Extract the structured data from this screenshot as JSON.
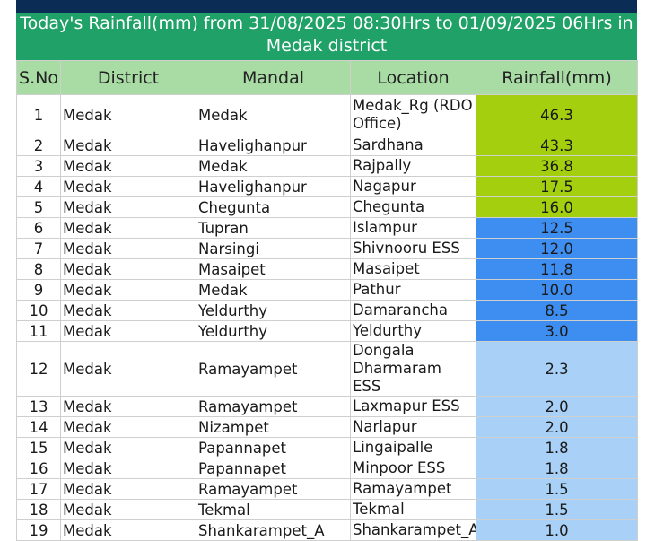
{
  "title_line1": "Today's Rainfall(mm) from 31/08/2025 08:30Hrs to 01/09/2025 06Hrs in",
  "title_line2": "Medak district",
  "headers": [
    "S.No",
    "District",
    "Mandal",
    "Location",
    "Rainfall(mm)"
  ],
  "colors": {
    "green": "#a4cf0f",
    "mid_blue": "#3d8ef0",
    "light_blue": "#a9d1f7",
    "header_green": "#a9dca5",
    "title_green": "#1fa167",
    "top_navy": "#0b2d55"
  },
  "rows": [
    {
      "sno": "1",
      "district": "Medak",
      "mandal": "Medak",
      "location": "Medak_Rg (RDO Office)",
      "rainfall": "46.3",
      "level": "green",
      "tall": true
    },
    {
      "sno": "2",
      "district": "Medak",
      "mandal": "Havelighanpur",
      "location": "Sardhana",
      "rainfall": "43.3",
      "level": "green"
    },
    {
      "sno": "3",
      "district": "Medak",
      "mandal": "Medak",
      "location": "Rajpally",
      "rainfall": "36.8",
      "level": "green"
    },
    {
      "sno": "4",
      "district": "Medak",
      "mandal": "Havelighanpur",
      "location": "Nagapur",
      "rainfall": "17.5",
      "level": "green"
    },
    {
      "sno": "5",
      "district": "Medak",
      "mandal": "Chegunta",
      "location": "Chegunta",
      "rainfall": "16.0",
      "level": "green"
    },
    {
      "sno": "6",
      "district": "Medak",
      "mandal": "Tupran",
      "location": "Islampur",
      "rainfall": "12.5",
      "level": "mid_blue"
    },
    {
      "sno": "7",
      "district": "Medak",
      "mandal": "Narsingi",
      "location": "Shivnooru ESS",
      "rainfall": "12.0",
      "level": "mid_blue"
    },
    {
      "sno": "8",
      "district": "Medak",
      "mandal": "Masaipet",
      "location": "Masaipet",
      "rainfall": "11.8",
      "level": "mid_blue"
    },
    {
      "sno": "9",
      "district": "Medak",
      "mandal": "Medak",
      "location": "Pathur",
      "rainfall": "10.0",
      "level": "mid_blue"
    },
    {
      "sno": "10",
      "district": "Medak",
      "mandal": "Yeldurthy",
      "location": "Damarancha",
      "rainfall": "8.5",
      "level": "mid_blue"
    },
    {
      "sno": "11",
      "district": "Medak",
      "mandal": "Yeldurthy",
      "location": "Yeldurthy",
      "rainfall": "3.0",
      "level": "mid_blue"
    },
    {
      "sno": "12",
      "district": "Medak",
      "mandal": "Ramayampet",
      "location": "Dongala Dharmaram ESS",
      "rainfall": "2.3",
      "level": "light_blue",
      "tall": true
    },
    {
      "sno": "13",
      "district": "Medak",
      "mandal": "Ramayampet",
      "location": "Laxmapur ESS",
      "rainfall": "2.0",
      "level": "light_blue"
    },
    {
      "sno": "14",
      "district": "Medak",
      "mandal": "Nizampet",
      "location": "Narlapur",
      "rainfall": "2.0",
      "level": "light_blue"
    },
    {
      "sno": "15",
      "district": "Medak",
      "mandal": "Papannapet",
      "location": "Lingaipalle",
      "rainfall": "1.8",
      "level": "light_blue"
    },
    {
      "sno": "16",
      "district": "Medak",
      "mandal": "Papannapet",
      "location": "Minpoor ESS",
      "rainfall": "1.8",
      "level": "light_blue"
    },
    {
      "sno": "17",
      "district": "Medak",
      "mandal": "Ramayampet",
      "location": "Ramayampet",
      "rainfall": "1.5",
      "level": "light_blue"
    },
    {
      "sno": "18",
      "district": "Medak",
      "mandal": "Tekmal",
      "location": "Tekmal",
      "rainfall": "1.5",
      "level": "light_blue"
    },
    {
      "sno": "19",
      "district": "Medak",
      "mandal": "Shankarampet_A",
      "location": "Shankarampet_A",
      "rainfall": "1.0",
      "level": "light_blue"
    }
  ]
}
